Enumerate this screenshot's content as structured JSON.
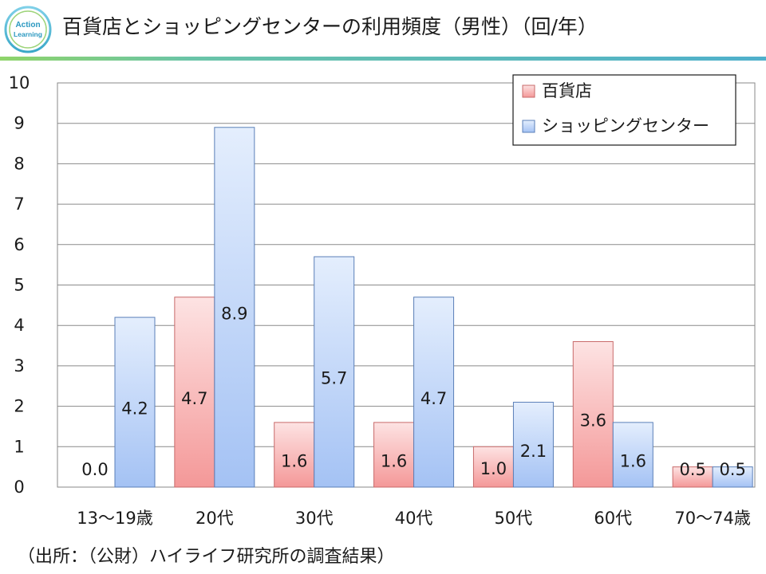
{
  "header": {
    "logo_text": "Action Learning",
    "title": "百貨店とショッピングセンターの利用頻度（男性）（回/年）"
  },
  "source": "（出所：（公財）ハイライフ研究所の調査結果）",
  "colors": {
    "dept": "#f4a6a6",
    "mall": "#a9c6f2",
    "accent": "#66bbbb"
  },
  "chart_data": {
    "type": "bar",
    "title": "百貨店とショッピングセンターの利用頻度（男性）（回/年）",
    "categories": [
      "13～19歳",
      "20代",
      "30代",
      "40代",
      "50代",
      "60代",
      "70～74歳"
    ],
    "series": [
      {
        "name": "百貨店",
        "values": [
          0.0,
          4.7,
          1.6,
          1.6,
          1.0,
          3.6,
          0.5
        ]
      },
      {
        "name": "ショッピングセンター",
        "values": [
          4.2,
          8.9,
          5.7,
          4.7,
          2.1,
          1.6,
          0.5
        ]
      }
    ],
    "ylim": [
      0,
      10
    ],
    "yticks": [
      "0",
      "1",
      "2",
      "3",
      "4",
      "5",
      "6",
      "7",
      "8",
      "9",
      "10"
    ],
    "grid": true,
    "legend": "top-right",
    "xlabel": "",
    "ylabel": ""
  }
}
